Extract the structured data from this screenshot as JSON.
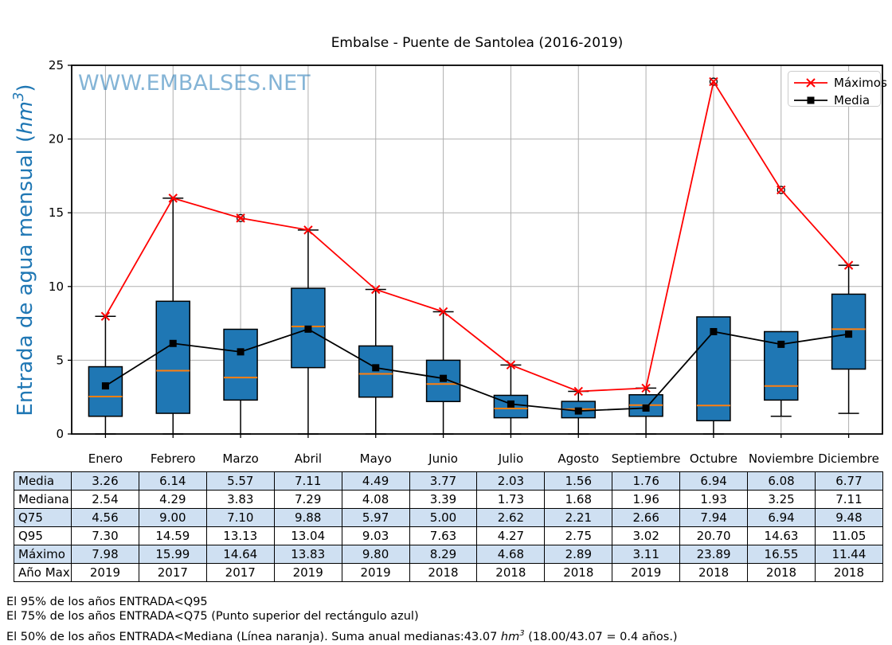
{
  "title": "Embalse - Puente de Santolea (2016-2019)",
  "watermark": "WWW.EMBALSES.NET",
  "y_axis": {
    "label_prefix": "Entrada de agua mensual (",
    "label_unit": "hm",
    "label_sup": "3",
    "label_suffix": ")",
    "label_color": "#1f77b4",
    "ticks": [
      0,
      5,
      10,
      15,
      20,
      25
    ]
  },
  "legend": {
    "items": [
      {
        "label": "Máximos",
        "color": "#ff0000",
        "marker": "x"
      },
      {
        "label": "Media",
        "color": "#000000",
        "marker": "square"
      }
    ]
  },
  "chart_data": {
    "type": "boxplot_with_lines",
    "categories": [
      "Enero",
      "Febrero",
      "Marzo",
      "Abril",
      "Mayo",
      "Junio",
      "Julio",
      "Agosto",
      "Septiembre",
      "Octubre",
      "Noviembre",
      "Diciembre"
    ],
    "ylim": [
      0,
      25
    ],
    "grid": true,
    "legend_position": "upper right",
    "series": [
      {
        "name": "Máximos",
        "marker": "x",
        "color": "#ff0000",
        "values": [
          7.98,
          15.99,
          14.64,
          13.83,
          9.8,
          8.29,
          4.68,
          2.89,
          3.11,
          23.89,
          16.55,
          11.44
        ]
      },
      {
        "name": "Media",
        "marker": "square",
        "color": "#000000",
        "values": [
          3.26,
          6.14,
          5.57,
          7.11,
          4.49,
          3.77,
          2.03,
          1.56,
          1.76,
          6.94,
          6.08,
          6.77
        ]
      }
    ],
    "boxplot": {
      "box_color": "#1f77b4",
      "median_color": "#ff7f0e",
      "q25": [
        1.2,
        1.4,
        2.3,
        4.5,
        2.5,
        2.2,
        1.1,
        1.1,
        1.2,
        0.9,
        2.3,
        4.4
      ],
      "median": [
        2.54,
        4.29,
        3.83,
        7.29,
        4.08,
        3.39,
        1.73,
        1.68,
        1.96,
        1.93,
        3.25,
        7.11
      ],
      "q75": [
        4.56,
        9.0,
        7.1,
        9.88,
        5.97,
        5.0,
        2.62,
        2.21,
        2.66,
        7.94,
        6.94,
        9.48
      ],
      "whisker_low": [
        0,
        0,
        0,
        0,
        0,
        0,
        0,
        0,
        0,
        0,
        1.2,
        1.4
      ],
      "whisker_high": [
        7.98,
        15.99,
        null,
        13.83,
        9.8,
        8.29,
        4.68,
        2.89,
        3.11,
        null,
        null,
        11.44
      ],
      "fliers": [
        null,
        null,
        14.64,
        null,
        null,
        null,
        null,
        null,
        null,
        23.89,
        16.55,
        null
      ]
    }
  },
  "table": {
    "stripe_color": "#cfe0f2",
    "row_labels": [
      "Media",
      "Mediana",
      "Q75",
      "Q95",
      "Máximo",
      "Año Max"
    ],
    "columns": [
      "Enero",
      "Febrero",
      "Marzo",
      "Abril",
      "Mayo",
      "Junio",
      "Julio",
      "Agosto",
      "Septiembre",
      "Octubre",
      "Noviembre",
      "Diciembre"
    ],
    "rows": [
      [
        "3.26",
        "6.14",
        "5.57",
        "7.11",
        "4.49",
        "3.77",
        "2.03",
        "1.56",
        "1.76",
        "6.94",
        "6.08",
        "6.77"
      ],
      [
        "2.54",
        "4.29",
        "3.83",
        "7.29",
        "4.08",
        "3.39",
        "1.73",
        "1.68",
        "1.96",
        "1.93",
        "3.25",
        "7.11"
      ],
      [
        "4.56",
        "9.00",
        "7.10",
        "9.88",
        "5.97",
        "5.00",
        "2.62",
        "2.21",
        "2.66",
        "7.94",
        "6.94",
        "9.48"
      ],
      [
        "7.30",
        "14.59",
        "13.13",
        "13.04",
        "9.03",
        "7.63",
        "4.27",
        "2.75",
        "3.02",
        "20.70",
        "14.63",
        "11.05"
      ],
      [
        "7.98",
        "15.99",
        "14.64",
        "13.83",
        "9.80",
        "8.29",
        "4.68",
        "2.89",
        "3.11",
        "23.89",
        "16.55",
        "11.44"
      ],
      [
        "2019",
        "2017",
        "2017",
        "2019",
        "2019",
        "2018",
        "2018",
        "2018",
        "2019",
        "2018",
        "2018",
        "2018"
      ]
    ]
  },
  "footnotes": {
    "line1": "El 95% de los años ENTRADA<Q95",
    "line2": "El 75% de los años ENTRADA<Q75 (Punto superior del rectángulo azul)",
    "line3_pre": "El 50% de los años ENTRADA<Mediana (Línea naranja). Suma anual medianas:43.07 ",
    "line3_unit": "hm",
    "line3_sup": "3",
    "line3_post": " (18.00/43.07 = 0.4 años.)"
  }
}
